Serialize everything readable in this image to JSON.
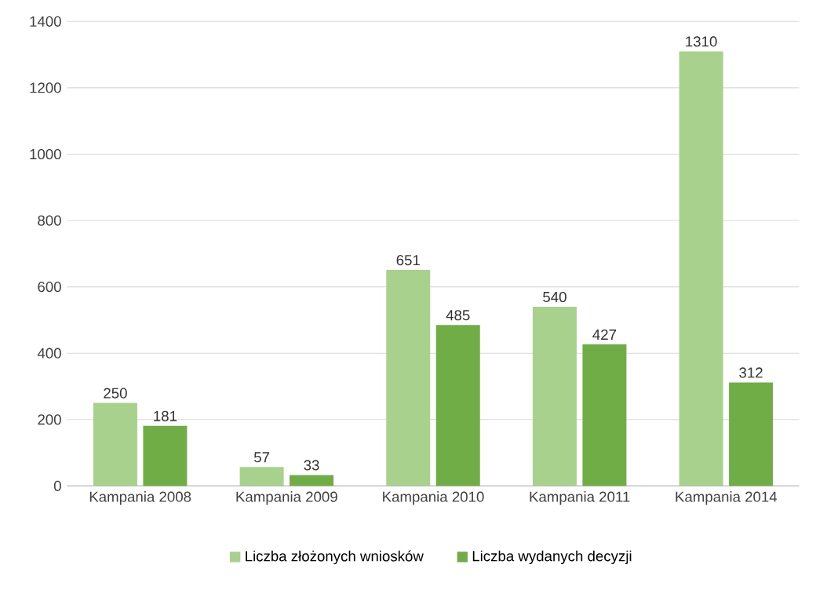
{
  "chart_data": {
    "type": "bar",
    "categories": [
      "Kampania 2008",
      "Kampania 2009",
      "Kampania 2010",
      "Kampania 2011",
      "Kampania 2014"
    ],
    "series": [
      {
        "name": "Liczba złożonych wniosków",
        "color": "#a9d18e",
        "values": [
          250,
          57,
          651,
          540,
          1310
        ]
      },
      {
        "name": "Liczba wydanych decyzji",
        "color": "#70ad47",
        "values": [
          181,
          33,
          485,
          427,
          312
        ]
      }
    ],
    "ylim": [
      0,
      1400
    ],
    "yticks": [
      0,
      200,
      400,
      600,
      800,
      1000,
      1200,
      1400
    ],
    "grid": "y",
    "legend": "bottom",
    "data_labels": true
  }
}
